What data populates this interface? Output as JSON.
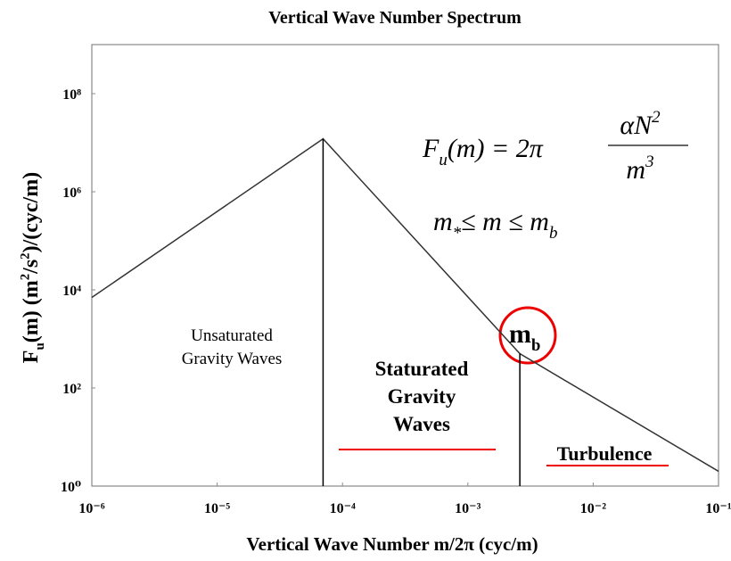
{
  "chart_data": {
    "type": "line",
    "title": "Vertical Wave Number Spectrum",
    "x_label": "Vertical Wave Number m/2π   (cyc/m)",
    "y_label_parts": [
      "F",
      "u",
      "(m)  (m",
      "2",
      "/s",
      "2",
      ")/(cyc/m)"
    ],
    "log_x": true,
    "log_y": true,
    "xlim": [
      1e-06,
      0.1
    ],
    "ylim": [
      1,
      1000000000
    ],
    "xticks": [
      {
        "value": 1e-06,
        "label": "10⁻⁶"
      },
      {
        "value": 1e-05,
        "label": "10⁻⁵"
      },
      {
        "value": 0.0001,
        "label": "10⁻⁴"
      },
      {
        "value": 0.001,
        "label": "10⁻³"
      },
      {
        "value": 0.01,
        "label": "10⁻²"
      },
      {
        "value": 0.1,
        "label": "10⁻¹"
      }
    ],
    "yticks": [
      {
        "value": 1,
        "label": "10⁰"
      },
      {
        "value": 100,
        "label": "10²"
      },
      {
        "value": 10000,
        "label": "10⁴"
      },
      {
        "value": 1000000,
        "label": "10⁶"
      },
      {
        "value": 100000000,
        "label": "10⁸"
      }
    ],
    "x": [
      1e-06,
      7e-05,
      0.0026,
      0.1
    ],
    "values": [
      7000,
      12000000,
      500,
      2
    ],
    "color": "#333333",
    "vlines": [
      7e-05,
      0.0026
    ],
    "region_labels": [
      [
        "Unsaturated",
        "Gravity Waves"
      ],
      [
        "Staturated",
        "Gravity",
        "Waves"
      ],
      [
        "Turbulence"
      ]
    ],
    "mb_label": [
      "m",
      "b"
    ],
    "formula_1": [
      "F",
      "u",
      "(m)  =  2π",
      "αN",
      "2",
      "m",
      "3"
    ],
    "formula_2": [
      "m",
      "*",
      "≤  m  ≤  m",
      "b"
    ]
  }
}
